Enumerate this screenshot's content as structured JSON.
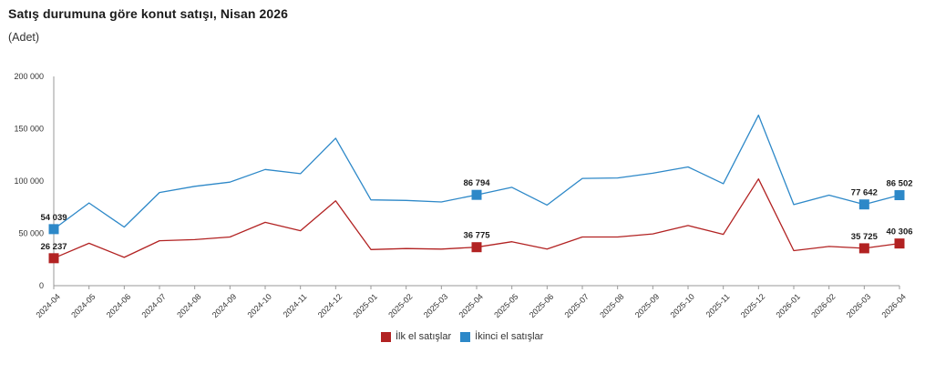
{
  "title": "Satış durumuna göre konut satışı, Nisan 2026",
  "subtitle": "(Adet)",
  "colors": {
    "ilk_el": "#b22222",
    "ikinci_el": "#2d88c8",
    "grid": "#cfcfcf",
    "axis": "#999999"
  },
  "legend": [
    {
      "name": "İlk el satışlar",
      "color": "#b22222"
    },
    {
      "name": "İkinci el satışlar",
      "color": "#2d88c8"
    }
  ],
  "chart_data": {
    "type": "line",
    "title": "Satış durumuna göre konut satışı, Nisan 2026",
    "ylabel": "(Adet)",
    "ylim": [
      0,
      200000
    ],
    "yticks": [
      0,
      50000,
      100000,
      150000,
      200000
    ],
    "ytick_labels": [
      "0",
      "50 000",
      "100 000",
      "150 000",
      "200 000"
    ],
    "grid": false,
    "legend_position": "bottom-center",
    "categories": [
      "2024-04",
      "2024-05",
      "2024-06",
      "2024-07",
      "2024-08",
      "2024-09",
      "2024-10",
      "2024-11",
      "2024-12",
      "2025-01",
      "2025-02",
      "2025-03",
      "2025-04",
      "2025-05",
      "2025-06",
      "2025-07",
      "2025-08",
      "2025-09",
      "2025-10",
      "2025-11",
      "2025-12",
      "2026-01",
      "2026-02",
      "2026-03",
      "2026-04"
    ],
    "series": [
      {
        "name": "İlk el satışlar",
        "color": "#b22222",
        "values": [
          26237,
          40500,
          27000,
          43000,
          44000,
          46500,
          60500,
          52500,
          81000,
          34500,
          35500,
          35000,
          36775,
          42000,
          35000,
          46500,
          46500,
          49500,
          57500,
          49000,
          102000,
          33500,
          37500,
          35725,
          40306
        ],
        "labels": [
          {
            "index": 0,
            "text": "26 237"
          },
          {
            "index": 12,
            "text": "36 775"
          },
          {
            "index": 23,
            "text": "35 725"
          },
          {
            "index": 24,
            "text": "40 306"
          }
        ]
      },
      {
        "name": "İkinci el satışlar",
        "color": "#2d88c8",
        "values": [
          54039,
          79000,
          56000,
          89000,
          95000,
          99000,
          111000,
          107000,
          141000,
          82000,
          81500,
          80000,
          86794,
          94000,
          77000,
          102500,
          103000,
          107500,
          113500,
          97500,
          163000,
          77500,
          86500,
          77642,
          86502
        ],
        "labels": [
          {
            "index": 0,
            "text": "54 039"
          },
          {
            "index": 12,
            "text": "86 794"
          },
          {
            "index": 23,
            "text": "77 642"
          },
          {
            "index": 24,
            "text": "86 502"
          }
        ]
      }
    ]
  }
}
